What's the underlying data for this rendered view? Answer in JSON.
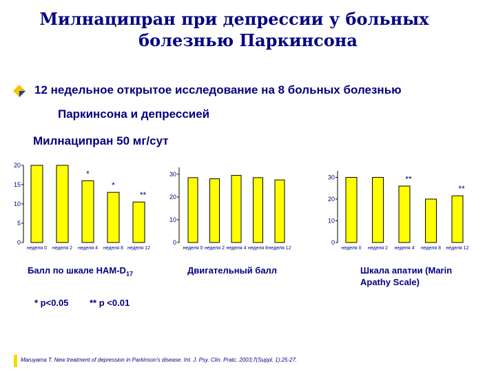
{
  "title": {
    "line1": "Милнаципран при депрессии у больных",
    "line2": "болезнью Паркинсона"
  },
  "study": {
    "line1": "12 недельное открытое исследование на 8 больных болезнью",
    "line2": "Паркинсона и депрессией"
  },
  "dose": "Милнаципран 50 мг/сут",
  "significance": {
    "p05": "* p<0.05",
    "p01": "** p <0.01"
  },
  "reference": "Maruyama T. New treatment of depression in Parkinson's disease. Int. J. Psy. Clin. Pratc. 2003;7(Suppl. 1):25-27.",
  "colors": {
    "bar_fill": "#ffff00",
    "bar_stroke": "#000000",
    "title": "#000080",
    "bullet": "#f5c400"
  },
  "chart_data": [
    {
      "type": "bar",
      "categories": [
        "неделя 0",
        "неделя 2",
        "неделя 4",
        "неделя 8",
        "неделя 12"
      ],
      "values": [
        20,
        20,
        16,
        13,
        10.5
      ],
      "annotations": [
        "",
        "",
        "*",
        "*",
        "**"
      ],
      "yticks": [
        0,
        5,
        10,
        15,
        20
      ],
      "ylim": [
        0,
        20
      ],
      "xlabel": "Балл по шкале HAM-D",
      "xlabel_sub": "17"
    },
    {
      "type": "bar",
      "categories": [
        "неделя 0",
        "неделя 2",
        "неделя 4",
        "неделя 8",
        "неделя 12"
      ],
      "values": [
        28.5,
        28,
        29.5,
        28.5,
        27.5
      ],
      "annotations": [
        "",
        "",
        "",
        "",
        ""
      ],
      "yticks": [
        0,
        10,
        20,
        30
      ],
      "ylim": [
        0,
        33
      ],
      "xlabel": "Двигательный балл",
      "xlabel_sub": ""
    },
    {
      "type": "bar",
      "categories": [
        "неделя 0",
        "неделя 2",
        "неделя 4",
        "неделя 8",
        "неделя 12"
      ],
      "values": [
        30,
        30,
        26,
        20,
        21.5
      ],
      "annotations": [
        "",
        "",
        "**",
        "",
        "**"
      ],
      "yticks": [
        0,
        10,
        20,
        30
      ],
      "ylim": [
        0,
        33
      ],
      "xlabel": "Шкала апатии (Marin Apathy Scale)",
      "xlabel_sub": ""
    }
  ]
}
